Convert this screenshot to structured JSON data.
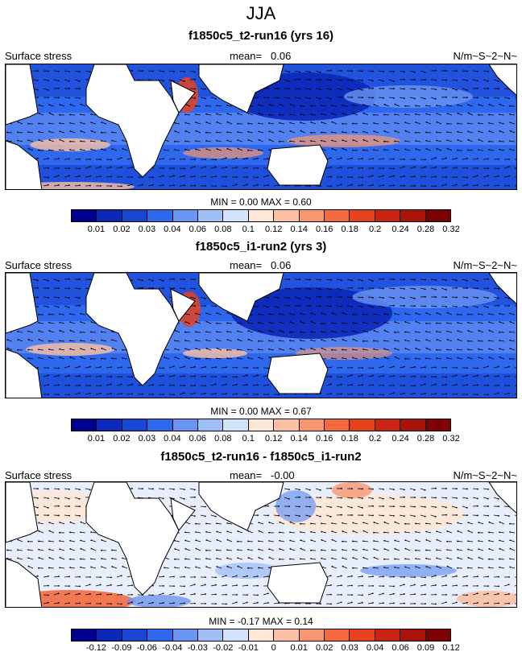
{
  "figure": {
    "title": "JJA"
  },
  "panels": [
    {
      "title": "f1850c5_t2-run16 (yrs 16)",
      "left_label": "Surface stress",
      "mean_label": "mean=",
      "mean_value": "0.06",
      "units": "N/m~S~2~N~",
      "stats": "MIN =   0.00 MAX =   0.60",
      "colorbar": {
        "colors": [
          "#00008f",
          "#0c28b8",
          "#1a46d4",
          "#2e68ee",
          "#6b95f3",
          "#a1bff7",
          "#d2e3fb",
          "#fde7d6",
          "#fbc0a4",
          "#f8966f",
          "#f26a3e",
          "#e6421e",
          "#c92512",
          "#a8130a",
          "#7e0202"
        ],
        "ticks": [
          "0.01",
          "0.02",
          "0.03",
          "0.04",
          "0.06",
          "0.08",
          "0.1",
          "0.12",
          "0.14",
          "0.16",
          "0.18",
          "0.2",
          "0.24",
          "0.28",
          "0.32"
        ]
      }
    },
    {
      "title": "f1850c5_i1-run2 (yrs 3)",
      "left_label": "Surface stress",
      "mean_label": "mean=",
      "mean_value": "0.06",
      "units": "N/m~S~2~N~",
      "stats": "MIN =   0.00 MAX =   0.67",
      "colorbar": {
        "colors": [
          "#00008f",
          "#0c28b8",
          "#1a46d4",
          "#2e68ee",
          "#6b95f3",
          "#a1bff7",
          "#d2e3fb",
          "#fde7d6",
          "#fbc0a4",
          "#f8966f",
          "#f26a3e",
          "#e6421e",
          "#c92512",
          "#a8130a",
          "#7e0202"
        ],
        "ticks": [
          "0.01",
          "0.02",
          "0.03",
          "0.04",
          "0.06",
          "0.08",
          "0.1",
          "0.12",
          "0.14",
          "0.16",
          "0.18",
          "0.2",
          "0.24",
          "0.28",
          "0.32"
        ]
      }
    },
    {
      "title": "f1850c5_t2-run16 - f1850c5_i1-run2",
      "left_label": "Surface stress",
      "mean_label": "mean=",
      "mean_value": "-0.00",
      "units": "N/m~S~2~N~",
      "stats": "MIN =  -0.17 MAX =   0.14",
      "colorbar": {
        "colors": [
          "#00008f",
          "#0c28b8",
          "#1a46d4",
          "#2e68ee",
          "#6b95f3",
          "#a1bff7",
          "#d2e3fb",
          "#fde7d6",
          "#fbc0a4",
          "#f8966f",
          "#f26a3e",
          "#e6421e",
          "#c92512",
          "#a8130a",
          "#7e0202"
        ],
        "ticks": [
          "-0.12",
          "-0.09",
          "-0.06",
          "-0.04",
          "-0.03",
          "-0.02",
          "-0.01",
          "0",
          "0.01",
          "0.02",
          "0.03",
          "0.04",
          "0.06",
          "0.09",
          "0.12"
        ]
      }
    }
  ]
}
